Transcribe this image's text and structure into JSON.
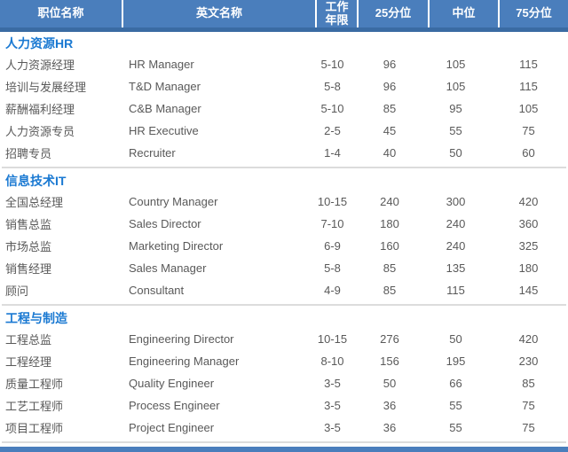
{
  "colors": {
    "header_bg": "#4a7ebc",
    "header_accent": "#3a6ba3",
    "section_title": "#1a79d2",
    "body_text": "#595959",
    "divider": "#dcdcdc"
  },
  "table": {
    "headers": {
      "position": "职位名称",
      "english": "英文名称",
      "years": "工作年限",
      "p25": "25分位",
      "median": "中位",
      "p75": "75分位"
    },
    "sections": [
      {
        "title": "人力资源HR",
        "rows": [
          {
            "position": "人力资源经理",
            "english": "HR Manager",
            "years": "5-10",
            "p25": 96,
            "median": 105,
            "p75": 115
          },
          {
            "position": "培训与发展经理",
            "english": "T&D Manager",
            "years": "5-8",
            "p25": 96,
            "median": 105,
            "p75": 115
          },
          {
            "position": "薪酬福利经理",
            "english": "C&B Manager",
            "years": "5-10",
            "p25": 85,
            "median": 95,
            "p75": 105
          },
          {
            "position": "人力资源专员",
            "english": "HR Executive",
            "years": "2-5",
            "p25": 45,
            "median": 55,
            "p75": 75
          },
          {
            "position": "招聘专员",
            "english": "Recruiter",
            "years": "1-4",
            "p25": 40,
            "median": 50,
            "p75": 60
          }
        ]
      },
      {
        "title": "信息技术IT",
        "rows": [
          {
            "position": "全国总经理",
            "english": "Country Manager",
            "years": "10-15",
            "p25": 240,
            "median": 300,
            "p75": 420
          },
          {
            "position": "销售总监",
            "english": "Sales Director",
            "years": "7-10",
            "p25": 180,
            "median": 240,
            "p75": 360
          },
          {
            "position": "市场总监",
            "english": "Marketing Director",
            "years": "6-9",
            "p25": 160,
            "median": 240,
            "p75": 325
          },
          {
            "position": "销售经理",
            "english": "Sales Manager",
            "years": "5-8",
            "p25": 85,
            "median": 135,
            "p75": 180
          },
          {
            "position": "顾问",
            "english": "Consultant",
            "years": "4-9",
            "p25": 85,
            "median": 115,
            "p75": 145
          }
        ]
      },
      {
        "title": "工程与制造",
        "rows": [
          {
            "position": "工程总监",
            "english": "Engineering Director",
            "years": "10-15",
            "p25": 276,
            "median": 50,
            "p75": 420
          },
          {
            "position": "工程经理",
            "english": "Engineering Manager",
            "years": "8-10",
            "p25": 156,
            "median": 195,
            "p75": 230
          },
          {
            "position": "质量工程师",
            "english": "Quality Engineer",
            "years": "3-5",
            "p25": 50,
            "median": 66,
            "p75": 85
          },
          {
            "position": "工艺工程师",
            "english": "Process Engineer",
            "years": "3-5",
            "p25": 36,
            "median": 55,
            "p75": 75
          },
          {
            "position": "项目工程师",
            "english": "Project Engineer",
            "years": "3-5",
            "p25": 36,
            "median": 55,
            "p75": 75
          }
        ]
      }
    ]
  }
}
